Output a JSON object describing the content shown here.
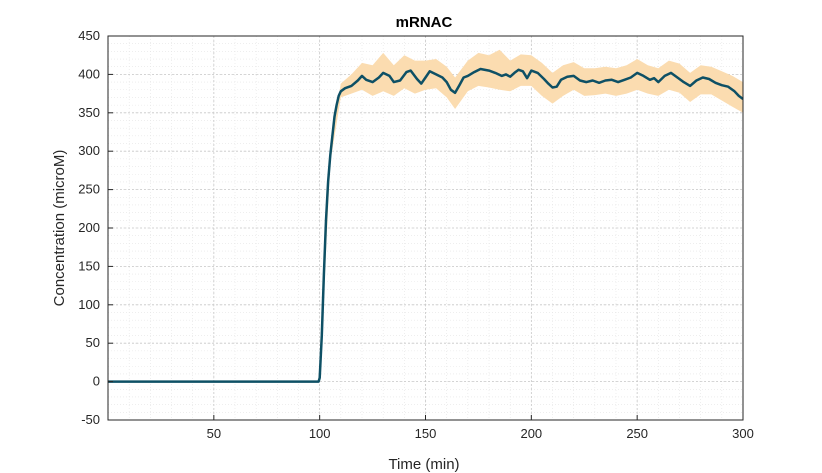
{
  "chart_data": {
    "type": "line",
    "title": "mRNAC",
    "xlabel": "Time (min)",
    "ylabel": "Concentration (microM)",
    "xlim": [
      0,
      300
    ],
    "ylim": [
      -50,
      450
    ],
    "x_ticks": [
      50,
      100,
      150,
      200,
      250,
      300
    ],
    "y_ticks": [
      -50,
      0,
      50,
      100,
      150,
      200,
      250,
      300,
      350,
      400,
      450
    ],
    "grid": "major and minor, dotted",
    "series": [
      {
        "color": "#0e5065",
        "band_color": "#fbdcb0",
        "points": [
          [
            0,
            0
          ],
          [
            20,
            0
          ],
          [
            40,
            0
          ],
          [
            60,
            0
          ],
          [
            80,
            0
          ],
          [
            99.5,
            0
          ],
          [
            100,
            5
          ],
          [
            101,
            60
          ],
          [
            102,
            140
          ],
          [
            103,
            210
          ],
          [
            104,
            260
          ],
          [
            105,
            295
          ],
          [
            106,
            320
          ],
          [
            107,
            345
          ],
          [
            108,
            360
          ],
          [
            109,
            372
          ],
          [
            110,
            378
          ],
          [
            112,
            382
          ],
          [
            115,
            385
          ],
          [
            118,
            392
          ],
          [
            120,
            398
          ],
          [
            122,
            393
          ],
          [
            125,
            390
          ],
          [
            128,
            396
          ],
          [
            130,
            402
          ],
          [
            133,
            398
          ],
          [
            135,
            390
          ],
          [
            138,
            392
          ],
          [
            141,
            403
          ],
          [
            143,
            405
          ],
          [
            146,
            394
          ],
          [
            148,
            388
          ],
          [
            150,
            396
          ],
          [
            152,
            404
          ],
          [
            155,
            400
          ],
          [
            158,
            396
          ],
          [
            160,
            390
          ],
          [
            162,
            380
          ],
          [
            164,
            376
          ],
          [
            166,
            386
          ],
          [
            168,
            396
          ],
          [
            170,
            398
          ],
          [
            173,
            403
          ],
          [
            176,
            407
          ],
          [
            180,
            405
          ],
          [
            183,
            402
          ],
          [
            186,
            398
          ],
          [
            188,
            400
          ],
          [
            190,
            397
          ],
          [
            192,
            402
          ],
          [
            194,
            406
          ],
          [
            196,
            404
          ],
          [
            198,
            395
          ],
          [
            200,
            405
          ],
          [
            203,
            402
          ],
          [
            206,
            394
          ],
          [
            208,
            388
          ],
          [
            210,
            383
          ],
          [
            212,
            384
          ],
          [
            214,
            393
          ],
          [
            217,
            397
          ],
          [
            220,
            398
          ],
          [
            223,
            392
          ],
          [
            226,
            390
          ],
          [
            229,
            392
          ],
          [
            232,
            389
          ],
          [
            235,
            392
          ],
          [
            238,
            393
          ],
          [
            241,
            390
          ],
          [
            244,
            393
          ],
          [
            247,
            396
          ],
          [
            250,
            402
          ],
          [
            253,
            398
          ],
          [
            256,
            393
          ],
          [
            258,
            395
          ],
          [
            260,
            390
          ],
          [
            263,
            398
          ],
          [
            266,
            402
          ],
          [
            269,
            396
          ],
          [
            272,
            390
          ],
          [
            275,
            385
          ],
          [
            278,
            392
          ],
          [
            281,
            396
          ],
          [
            284,
            394
          ],
          [
            287,
            389
          ],
          [
            290,
            386
          ],
          [
            293,
            384
          ],
          [
            296,
            378
          ],
          [
            298,
            372
          ],
          [
            300,
            368
          ]
        ],
        "band": [
          [
            0,
            0,
            0
          ],
          [
            99.5,
            0,
            0
          ],
          [
            100,
            0,
            8
          ],
          [
            105,
            285,
            305
          ],
          [
            110,
            370,
            388
          ],
          [
            115,
            375,
            400
          ],
          [
            120,
            380,
            415
          ],
          [
            125,
            372,
            412
          ],
          [
            130,
            378,
            428
          ],
          [
            135,
            372,
            412
          ],
          [
            140,
            382,
            425
          ],
          [
            145,
            375,
            418
          ],
          [
            150,
            380,
            418
          ],
          [
            155,
            382,
            420
          ],
          [
            160,
            370,
            410
          ],
          [
            164,
            355,
            396
          ],
          [
            170,
            378,
            418
          ],
          [
            175,
            385,
            428
          ],
          [
            180,
            383,
            425
          ],
          [
            185,
            380,
            432
          ],
          [
            190,
            378,
            418
          ],
          [
            195,
            385,
            426
          ],
          [
            200,
            385,
            425
          ],
          [
            205,
            372,
            415
          ],
          [
            210,
            362,
            402
          ],
          [
            215,
            372,
            412
          ],
          [
            220,
            380,
            416
          ],
          [
            225,
            372,
            408
          ],
          [
            230,
            373,
            408
          ],
          [
            235,
            375,
            410
          ],
          [
            240,
            372,
            408
          ],
          [
            245,
            375,
            412
          ],
          [
            250,
            380,
            420
          ],
          [
            255,
            375,
            412
          ],
          [
            260,
            372,
            408
          ],
          [
            265,
            380,
            418
          ],
          [
            270,
            376,
            414
          ],
          [
            275,
            364,
            402
          ],
          [
            280,
            374,
            412
          ],
          [
            285,
            374,
            410
          ],
          [
            290,
            366,
            404
          ],
          [
            295,
            358,
            398
          ],
          [
            300,
            350,
            390
          ]
        ]
      }
    ]
  }
}
